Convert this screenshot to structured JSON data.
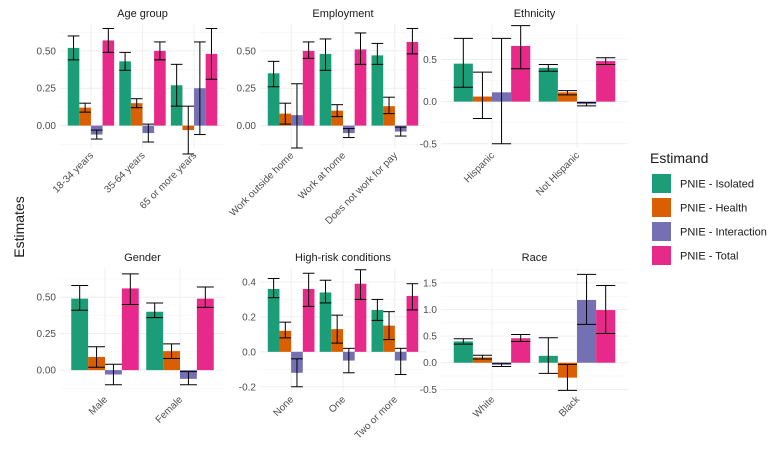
{
  "chart_data": {
    "type": "bar",
    "ylabel": "Estimates",
    "legend": {
      "title": "Estimand",
      "position": "right",
      "entries": [
        "PNIE - Isolated",
        "PNIE - Health",
        "PNIE - Interaction",
        "PNIE - Total"
      ]
    },
    "colors": [
      "#1b9e77",
      "#d95f02",
      "#7570b3",
      "#e7298a"
    ],
    "panels": [
      {
        "title": "Age group",
        "categories": [
          "18-34 years",
          "35-64 years",
          "65 or more years"
        ],
        "ylim": [
          -0.15,
          0.68
        ],
        "yticks": [
          0.0,
          0.25,
          0.5
        ],
        "ytick_labels": [
          "0.00",
          "0.25",
          "0.50"
        ],
        "series": [
          {
            "name": "PNIE - Isolated",
            "values": [
              0.52,
              0.43,
              0.27
            ],
            "lower": [
              0.44,
              0.37,
              0.13
            ],
            "upper": [
              0.6,
              0.49,
              0.41
            ]
          },
          {
            "name": "PNIE - Health",
            "values": [
              0.12,
              0.15,
              -0.03
            ],
            "lower": [
              0.09,
              0.12,
              -0.19
            ],
            "upper": [
              0.15,
              0.18,
              0.13
            ]
          },
          {
            "name": "PNIE - Interaction",
            "values": [
              -0.06,
              -0.05,
              0.25
            ],
            "lower": [
              -0.09,
              -0.11,
              -0.06
            ],
            "upper": [
              -0.03,
              0.01,
              0.56
            ]
          },
          {
            "name": "PNIE - Total",
            "values": [
              0.57,
              0.5,
              0.48
            ],
            "lower": [
              0.49,
              0.44,
              0.31
            ],
            "upper": [
              0.65,
              0.56,
              0.65
            ]
          }
        ]
      },
      {
        "title": "Employment",
        "categories": [
          "Work outside home",
          "Work at home",
          "Does not work for pay"
        ],
        "ylim": [
          -0.15,
          0.68
        ],
        "yticks": [
          0.0,
          0.25,
          0.5
        ],
        "ytick_labels": [
          "0.00",
          "0.25",
          "0.50"
        ],
        "series": [
          {
            "name": "PNIE - Isolated",
            "values": [
              0.35,
              0.48,
              0.47
            ],
            "lower": [
              0.26,
              0.37,
              0.41
            ],
            "upper": [
              0.43,
              0.58,
              0.55
            ]
          },
          {
            "name": "PNIE - Health",
            "values": [
              0.08,
              0.1,
              0.13
            ],
            "lower": [
              0.01,
              0.06,
              0.08
            ],
            "upper": [
              0.15,
              0.14,
              0.19
            ]
          },
          {
            "name": "PNIE - Interaction",
            "values": [
              0.07,
              -0.05,
              -0.04
            ],
            "lower": [
              -0.15,
              -0.08,
              -0.07
            ],
            "upper": [
              0.28,
              -0.02,
              -0.01
            ]
          },
          {
            "name": "PNIE - Total",
            "values": [
              0.5,
              0.51,
              0.56
            ],
            "lower": [
              0.45,
              0.41,
              0.48
            ],
            "upper": [
              0.56,
              0.62,
              0.65
            ]
          }
        ]
      },
      {
        "title": "Ethnicity",
        "categories": [
          "Hispanic",
          "Not Hispanic"
        ],
        "ylim": [
          -0.55,
          0.92
        ],
        "yticks": [
          -0.5,
          0.0,
          0.5
        ],
        "ytick_labels": [
          "-0.5",
          "0.0",
          "0.5"
        ],
        "series": [
          {
            "name": "PNIE - Isolated",
            "values": [
              0.45,
              0.4
            ],
            "lower": [
              0.17,
              0.36
            ],
            "upper": [
              0.75,
              0.44
            ]
          },
          {
            "name": "PNIE - Health",
            "values": [
              0.06,
              0.11
            ],
            "lower": [
              -0.2,
              0.08
            ],
            "upper": [
              0.35,
              0.13
            ]
          },
          {
            "name": "PNIE - Interaction",
            "values": [
              0.11,
              -0.03
            ],
            "lower": [
              -0.5,
              -0.05
            ],
            "upper": [
              0.75,
              -0.01
            ]
          },
          {
            "name": "PNIE - Total",
            "values": [
              0.66,
              0.48
            ],
            "lower": [
              0.39,
              0.44
            ],
            "upper": [
              0.9,
              0.52
            ]
          }
        ]
      },
      {
        "title": "Gender",
        "categories": [
          "Male",
          "Female"
        ],
        "ylim": [
          -0.15,
          0.7
        ],
        "yticks": [
          0.0,
          0.25,
          0.5
        ],
        "ytick_labels": [
          "0.00",
          "0.25",
          "0.50"
        ],
        "series": [
          {
            "name": "PNIE - Isolated",
            "values": [
              0.49,
              0.4
            ],
            "lower": [
              0.41,
              0.36
            ],
            "upper": [
              0.58,
              0.46
            ]
          },
          {
            "name": "PNIE - Health",
            "values": [
              0.09,
              0.13
            ],
            "lower": [
              0.02,
              0.08
            ],
            "upper": [
              0.16,
              0.18
            ]
          },
          {
            "name": "PNIE - Interaction",
            "values": [
              -0.03,
              -0.06
            ],
            "lower": [
              -0.1,
              -0.1
            ],
            "upper": [
              0.04,
              -0.01
            ]
          },
          {
            "name": "PNIE - Total",
            "values": [
              0.56,
              0.49
            ],
            "lower": [
              0.45,
              0.43
            ],
            "upper": [
              0.66,
              0.57
            ]
          }
        ]
      },
      {
        "title": "High-risk conditions",
        "categories": [
          "None",
          "One",
          "Two or more"
        ],
        "ylim": [
          -0.23,
          0.48
        ],
        "yticks": [
          -0.2,
          0.0,
          0.2,
          0.4
        ],
        "ytick_labels": [
          "-0.2",
          "0.0",
          "0.2",
          "0.4"
        ],
        "series": [
          {
            "name": "PNIE - Isolated",
            "values": [
              0.36,
              0.34,
              0.24
            ],
            "lower": [
              0.31,
              0.28,
              0.18
            ],
            "upper": [
              0.42,
              0.41,
              0.3
            ]
          },
          {
            "name": "PNIE - Health",
            "values": [
              0.12,
              0.13,
              0.15
            ],
            "lower": [
              0.08,
              0.05,
              0.07
            ],
            "upper": [
              0.17,
              0.21,
              0.23
            ]
          },
          {
            "name": "PNIE - Interaction",
            "values": [
              -0.12,
              -0.05,
              -0.05
            ],
            "lower": [
              -0.2,
              -0.12,
              -0.13
            ],
            "upper": [
              -0.04,
              0.02,
              0.02
            ]
          },
          {
            "name": "PNIE - Total",
            "values": [
              0.36,
              0.39,
              0.32
            ],
            "lower": [
              0.26,
              0.3,
              0.24
            ],
            "upper": [
              0.45,
              0.47,
              0.39
            ]
          }
        ]
      },
      {
        "title": "Race",
        "categories": [
          "White",
          "Black"
        ],
        "ylim": [
          -0.55,
          1.78
        ],
        "yticks": [
          -0.5,
          0.0,
          0.5,
          1.0,
          1.5
        ],
        "ytick_labels": [
          "-0.5",
          "0.0",
          "0.5",
          "1.0",
          "1.5"
        ],
        "series": [
          {
            "name": "PNIE - Isolated",
            "values": [
              0.4,
              0.13
            ],
            "lower": [
              0.35,
              -0.2
            ],
            "upper": [
              0.45,
              0.47
            ]
          },
          {
            "name": "PNIE - Health",
            "values": [
              0.1,
              -0.28
            ],
            "lower": [
              0.07,
              -0.52
            ],
            "upper": [
              0.14,
              -0.03
            ]
          },
          {
            "name": "PNIE - Interaction",
            "values": [
              -0.04,
              1.18
            ],
            "lower": [
              -0.07,
              0.72
            ],
            "upper": [
              -0.01,
              1.66
            ]
          },
          {
            "name": "PNIE - Total",
            "values": [
              0.46,
              0.99
            ],
            "lower": [
              0.4,
              0.55
            ],
            "upper": [
              0.53,
              1.45
            ]
          }
        ]
      }
    ]
  }
}
